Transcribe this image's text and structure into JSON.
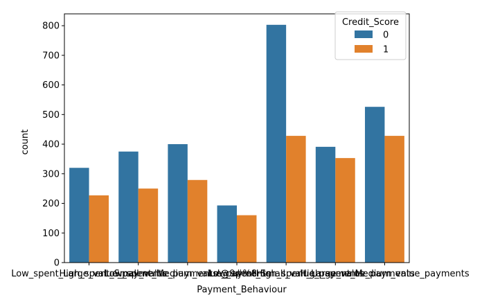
{
  "chart_data": {
    "type": "bar",
    "xlabel": "Payment_Behaviour",
    "ylabel": "count",
    "ylim": [
      0,
      840
    ],
    "yticks": [
      0,
      100,
      200,
      300,
      400,
      500,
      600,
      700,
      800
    ],
    "categories": [
      "Low_spent_Large_value_payments",
      "High_spent_Small_value_payments",
      "Low_spent_Medium_value_payments",
      "!@9#%8",
      "Low_spent_Small_value_payments",
      "High_spent_Large_value_payments",
      "High_spent_Medium_value_payments"
    ],
    "series": [
      {
        "name": "0",
        "color": "#3274a1",
        "values": [
          320,
          375,
          400,
          193,
          803,
          391,
          526
        ]
      },
      {
        "name": "1",
        "color": "#e1812c",
        "values": [
          227,
          250,
          279,
          160,
          428,
          353,
          428
        ]
      }
    ],
    "legend": {
      "title": "Credit_Score",
      "placement": "top-right"
    },
    "grid": false
  }
}
